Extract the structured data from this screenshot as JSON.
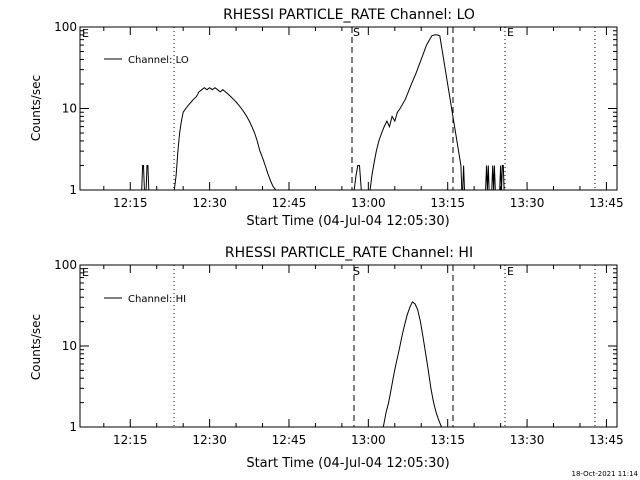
{
  "chart_data": [
    {
      "type": "line",
      "title": "RHESSI PARTICLE_RATE Channel: LO",
      "xlabel": "Start Time (04-Jul-04 12:05:30)",
      "ylabel": "Counts/sec",
      "yscale": "log",
      "ylim": [
        1,
        100
      ],
      "xlim": [
        "12:05:30",
        "13:47:00"
      ],
      "y_ticks": [
        "1",
        "10",
        "100"
      ],
      "x_ticks": [
        "12:15",
        "12:30",
        "12:45",
        "13:00",
        "13:15",
        "13:30",
        "13:45"
      ],
      "legend": "top-left",
      "series": [
        {
          "name": "Channel: LO",
          "x": [
            "12:17:10",
            "12:17:20",
            "12:17:30",
            "12:17:40",
            "12:17:50",
            "12:18:00",
            "12:18:10",
            "12:18:20",
            "12:18:30",
            "12:23:20",
            "12:23:40",
            "12:24:00",
            "12:24:20",
            "12:24:40",
            "12:25:00",
            "12:25:30",
            "12:26:00",
            "12:26:30",
            "12:27:00",
            "12:27:30",
            "12:28:00",
            "12:28:30",
            "12:29:00",
            "12:29:30",
            "12:30:00",
            "12:30:30",
            "12:31:00",
            "12:31:30",
            "12:32:00",
            "12:32:30",
            "12:33:00",
            "12:33:30",
            "12:34:00",
            "12:34:30",
            "12:35:00",
            "12:35:30",
            "12:36:00",
            "12:36:30",
            "12:37:00",
            "12:37:30",
            "12:38:00",
            "12:38:30",
            "12:39:00",
            "12:39:30",
            "12:40:00",
            "12:40:30",
            "12:41:00",
            "12:41:30",
            "12:42:00",
            "12:42:30",
            "12:43:00",
            "12:57:20",
            "12:57:40",
            "12:58:00",
            "12:58:20",
            "12:58:40",
            "13:00:20",
            "13:00:40",
            "13:01:00",
            "13:01:30",
            "13:02:00",
            "13:02:30",
            "13:03:00",
            "13:03:30",
            "13:04:00",
            "13:04:30",
            "13:05:00",
            "13:05:30",
            "13:06:00",
            "13:07:00",
            "13:08:00",
            "13:09:00",
            "13:10:00",
            "13:11:00",
            "13:12:00",
            "13:12:30",
            "13:13:00",
            "13:13:30",
            "13:17:30",
            "13:17:40",
            "13:17:50",
            "13:18:00",
            "13:18:10",
            "13:22:10",
            "13:22:20",
            "13:22:30",
            "13:22:40",
            "13:22:50",
            "13:23:20",
            "13:23:30",
            "13:23:40",
            "13:23:50",
            "13:24:00",
            "13:24:50",
            "13:25:00",
            "13:25:10",
            "13:25:20",
            "13:25:30",
            "13:25:40"
          ],
          "values": [
            1,
            2,
            2,
            1,
            1,
            1,
            2,
            2,
            1,
            1,
            1.5,
            3,
            5,
            7,
            9,
            10,
            11,
            12,
            13,
            14,
            16,
            17,
            18,
            17,
            18,
            17,
            18,
            17,
            16,
            17,
            16,
            15,
            14,
            13,
            12,
            11,
            10,
            9,
            8,
            7,
            6,
            5,
            4,
            3,
            2.5,
            2,
            1.6,
            1.3,
            1.1,
            1,
            1,
            1,
            1.5,
            2,
            2,
            1,
            1,
            1.5,
            2,
            3,
            4,
            5,
            6,
            7,
            6,
            8,
            7,
            9,
            10,
            13,
            19,
            27,
            40,
            60,
            78,
            80,
            80,
            78,
            2,
            1,
            1,
            2,
            1,
            1,
            2,
            1,
            2,
            1,
            1,
            2,
            1,
            2,
            1,
            1,
            2,
            1,
            2,
            2,
            1
          ]
        }
      ],
      "annotations": [
        "E",
        "S",
        "E"
      ]
    },
    {
      "type": "line",
      "title": "RHESSI PARTICLE_RATE Channel: HI",
      "xlabel": "Start Time (04-Jul-04 12:05:30)",
      "ylabel": "Counts/sec",
      "yscale": "log",
      "ylim": [
        1,
        100
      ],
      "xlim": [
        "12:05:30",
        "13:47:00"
      ],
      "y_ticks": [
        "1",
        "10",
        "100"
      ],
      "x_ticks": [
        "12:15",
        "12:30",
        "12:45",
        "13:00",
        "13:15",
        "13:30",
        "13:45"
      ],
      "legend": "top-left",
      "series": [
        {
          "name": "Channel: HI",
          "x": [
            "13:02:50",
            "13:03:20",
            "13:03:50",
            "13:04:20",
            "13:04:50",
            "13:05:20",
            "13:05:50",
            "13:06:20",
            "13:06:50",
            "13:07:20",
            "13:07:50",
            "13:08:20",
            "13:08:50",
            "13:09:20",
            "13:09:50",
            "13:10:20",
            "13:10:50",
            "13:11:20",
            "13:11:50",
            "13:12:20",
            "13:12:50",
            "13:13:20",
            "13:13:50"
          ],
          "values": [
            1,
            1.5,
            2,
            3,
            4.5,
            6.5,
            9,
            13,
            18,
            24,
            30,
            35,
            33,
            28,
            20,
            13,
            8,
            5,
            3,
            2,
            1.5,
            1.2,
            1
          ]
        }
      ],
      "annotations": [
        "E",
        "S",
        "E"
      ]
    }
  ],
  "footer": {
    "timestamp": "18-Oct-2021 11:14"
  }
}
